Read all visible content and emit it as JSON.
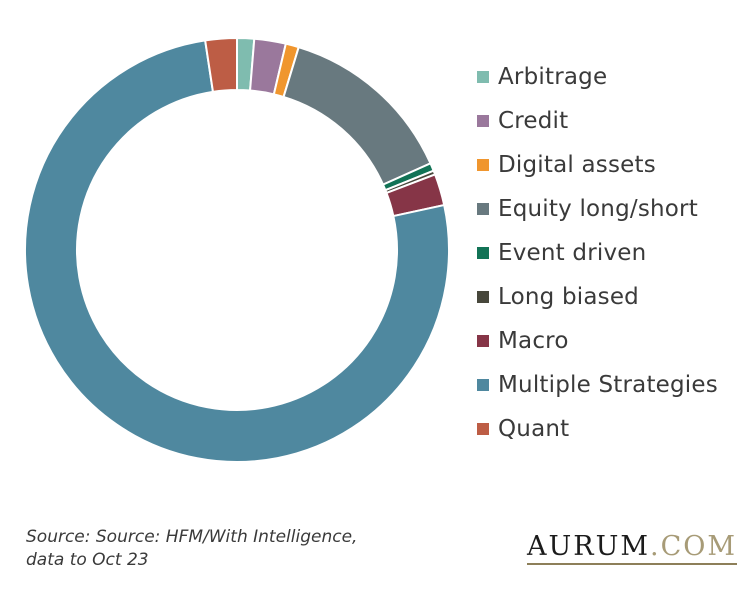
{
  "chart_data": {
    "type": "pie",
    "donut": true,
    "categories": [
      "Arbitrage",
      "Credit",
      "Digital assets",
      "Equity long/short",
      "Event driven",
      "Long biased",
      "Macro",
      "Multiple Strategies",
      "Quant"
    ],
    "values": [
      1.3,
      2.4,
      1.0,
      13.6,
      0.6,
      0.3,
      2.4,
      76.0,
      2.4
    ],
    "colors": [
      "#7fbcaf",
      "#9a789c",
      "#f0962e",
      "#68797f",
      "#127356",
      "#48483c",
      "#863547",
      "#4f889f",
      "#bd5d45"
    ],
    "legend_position": "right"
  },
  "footer": {
    "source_line1": "Source: Source: HFM/With Intelligence,",
    "source_line2": "data to Oct 23"
  },
  "brand": {
    "name": "AURUM",
    "suffix": ".COM"
  }
}
